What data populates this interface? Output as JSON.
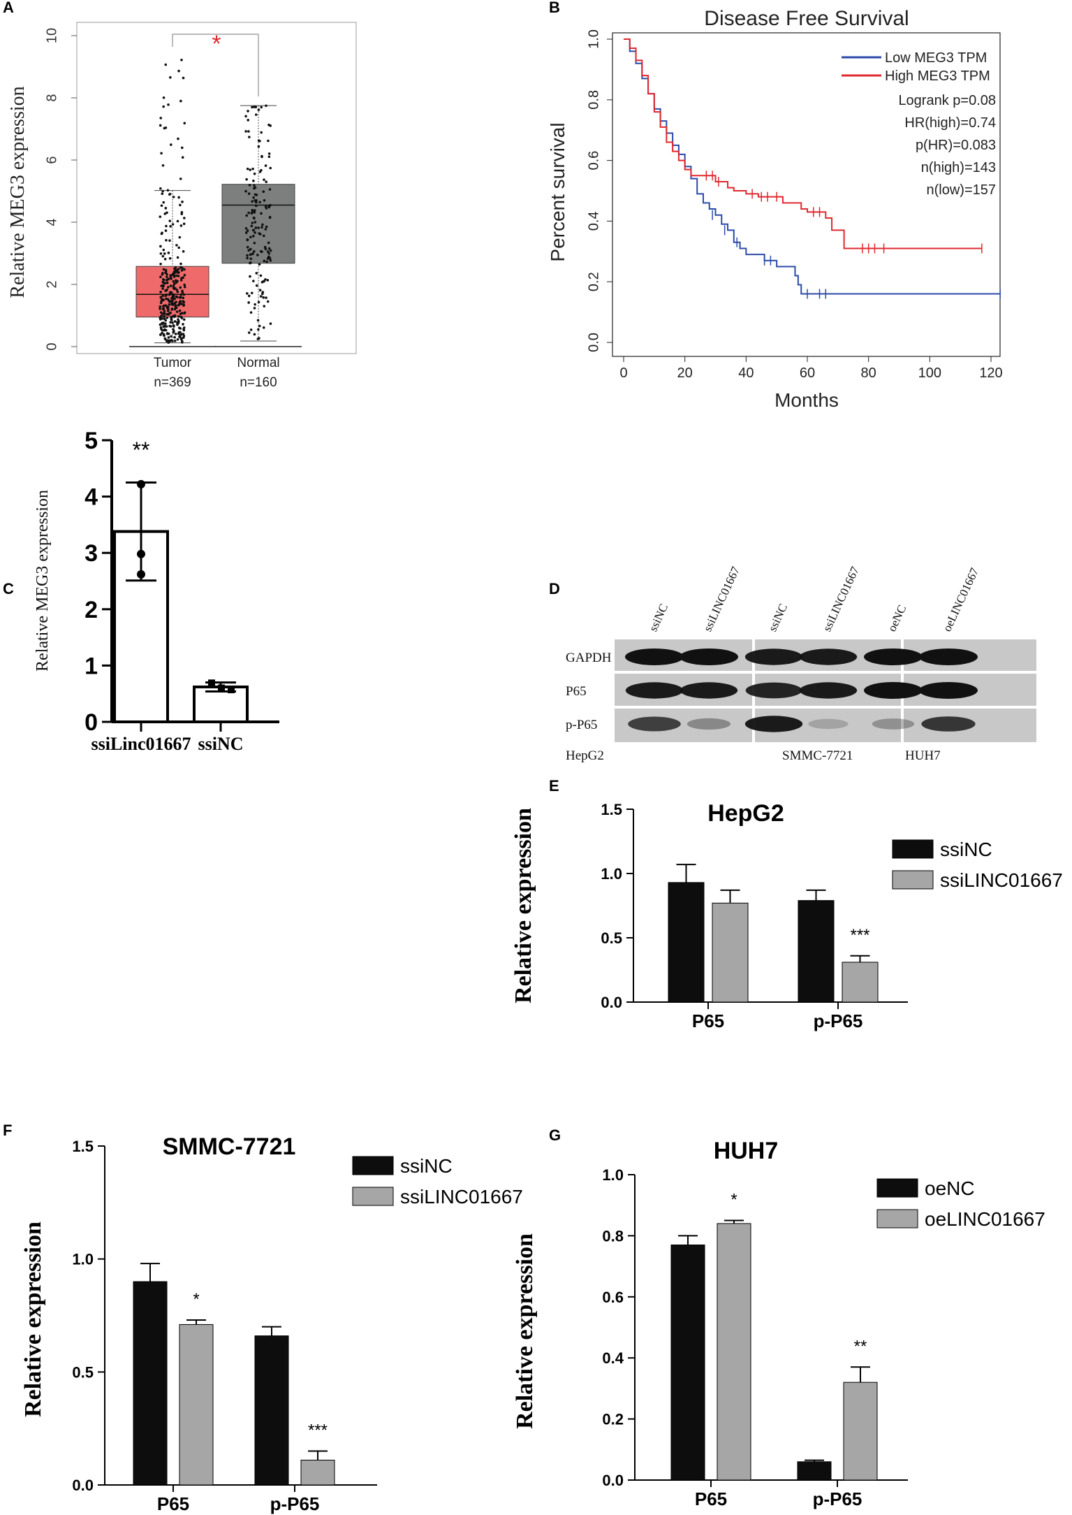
{
  "panel_letters": {
    "a": "A",
    "b": "B",
    "c": "C",
    "d": "D",
    "e": "E",
    "f": "F",
    "g": "G"
  },
  "chart_data": [
    {
      "id": "A",
      "type": "box",
      "title": "",
      "ylabel": "Relative MEG3  expression",
      "ylim": [
        0,
        10
      ],
      "yticks": [
        "0",
        "2",
        "4",
        "6",
        "8",
        "10"
      ],
      "significance": "*",
      "colors": {
        "tumor": "#ef6b6b",
        "normal": "#7c7f7d"
      },
      "groups": [
        {
          "name": "Tumor",
          "n_label": "n=369",
          "q1": 0.95,
          "median": 1.68,
          "q3": 2.58,
          "whisker_low": 0.12,
          "whisker_high": 5.02,
          "max_point": 9.55
        },
        {
          "name": "Normal",
          "n_label": "n=160",
          "q1": 2.68,
          "median": 4.55,
          "q3": 5.22,
          "whisker_low": 0.18,
          "whisker_high": 7.75,
          "max_point": 7.78
        }
      ]
    },
    {
      "id": "B",
      "type": "line",
      "title": "Disease Free Survival",
      "xlabel": "Months",
      "ylabel": "Percent survival",
      "xlim": [
        0,
        125
      ],
      "ylim": [
        0,
        1.0
      ],
      "xticks": [
        "0",
        "20",
        "40",
        "60",
        "80",
        "100",
        "120"
      ],
      "yticks": [
        "0.0",
        "0.2",
        "0.4",
        "0.6",
        "0.8",
        "1.0"
      ],
      "legend": [
        "Low MEG3 TPM",
        "High MEG3 TPM"
      ],
      "stats": [
        "Logrank p=0.08",
        "HR(high)=0.74",
        "p(HR)=0.083",
        "n(high)=143",
        "n(low)=157"
      ],
      "series": [
        {
          "name": "Low MEG3 TPM",
          "color": "#2b4aa8",
          "x": [
            0,
            2,
            4,
            6,
            8,
            10,
            12,
            14,
            16,
            18,
            20,
            22,
            24,
            26,
            28,
            30,
            32,
            34,
            36,
            38,
            40,
            42,
            44,
            46,
            48,
            50,
            52,
            54,
            56,
            57,
            58,
            60,
            70,
            80,
            90,
            100,
            110,
            123
          ],
          "y": [
            1.0,
            0.96,
            0.92,
            0.87,
            0.82,
            0.77,
            0.73,
            0.69,
            0.65,
            0.62,
            0.58,
            0.54,
            0.49,
            0.46,
            0.44,
            0.42,
            0.39,
            0.37,
            0.33,
            0.31,
            0.29,
            0.29,
            0.29,
            0.27,
            0.27,
            0.25,
            0.25,
            0.25,
            0.22,
            0.19,
            0.16,
            0.16,
            0.16,
            0.16,
            0.16,
            0.16,
            0.16,
            0.16
          ]
        },
        {
          "name": "High MEG3 TPM",
          "color": "#e0282e",
          "x": [
            0,
            2,
            4,
            6,
            8,
            10,
            12,
            14,
            16,
            18,
            20,
            22,
            24,
            26,
            28,
            30,
            34,
            36,
            40,
            44,
            48,
            52,
            56,
            58,
            60,
            66,
            68,
            70,
            72,
            74,
            80,
            90,
            100,
            110,
            117
          ],
          "y": [
            1.0,
            0.97,
            0.93,
            0.88,
            0.82,
            0.76,
            0.71,
            0.66,
            0.63,
            0.6,
            0.57,
            0.55,
            0.55,
            0.55,
            0.55,
            0.53,
            0.51,
            0.5,
            0.49,
            0.48,
            0.48,
            0.46,
            0.46,
            0.44,
            0.43,
            0.41,
            0.37,
            0.37,
            0.31,
            0.31,
            0.31,
            0.31,
            0.31,
            0.31,
            0.31
          ]
        }
      ]
    },
    {
      "id": "C",
      "type": "bar",
      "ylabel": "Relative MEG3 expression",
      "ylim": [
        0,
        5
      ],
      "yticks": [
        "0",
        "1",
        "2",
        "3",
        "4",
        "5"
      ],
      "categories": [
        "ssiLinc01667",
        "ssiNC"
      ],
      "values": [
        3.38,
        0.62
      ],
      "errors": [
        0.87,
        0.08
      ],
      "points": [
        [
          4.22,
          2.98,
          2.62
        ],
        [
          0.69,
          0.6,
          0.57
        ]
      ],
      "significance": [
        "**",
        ""
      ]
    },
    {
      "id": "D",
      "type": "western-blot",
      "lanes": [
        "ssiNC",
        "ssiLINC01667",
        "ssiNC",
        "ssiLINC01667",
        "oeNC",
        "oeLINC01667"
      ],
      "rows": [
        "GAPDH",
        "P65",
        "p-P65"
      ],
      "cell_lines": [
        "HepG2",
        "SMMC-7721",
        "HUH7"
      ],
      "intensity": [
        [
          1.0,
          1.0,
          0.95,
          0.95,
          1.0,
          1.0
        ],
        [
          0.95,
          0.95,
          0.9,
          0.95,
          1.0,
          1.0
        ],
        [
          0.75,
          0.35,
          0.95,
          0.2,
          0.3,
          0.8
        ]
      ]
    },
    {
      "id": "E",
      "type": "bar",
      "title": "HepG2",
      "ylabel": "Relative expression",
      "ylim": [
        0,
        1.5
      ],
      "yticks": [
        "0.0",
        "0.5",
        "1.0",
        "1.5"
      ],
      "categories": [
        "P65",
        "p-P65"
      ],
      "series": [
        {
          "name": "ssiNC",
          "color": "#0d0d0d",
          "values": [
            0.93,
            0.79
          ],
          "errors": [
            0.14,
            0.08
          ]
        },
        {
          "name": "ssiLINC01667",
          "color": "#a6a6a6",
          "values": [
            0.77,
            0.31
          ],
          "errors": [
            0.1,
            0.05
          ]
        }
      ],
      "significance": [
        "",
        "***"
      ]
    },
    {
      "id": "F",
      "type": "bar",
      "title": "SMMC-7721",
      "ylabel": "Relative expression",
      "ylim": [
        0,
        1.5
      ],
      "yticks": [
        "0.0",
        "0.5",
        "1.0",
        "1.5"
      ],
      "categories": [
        "P65",
        "p-P65"
      ],
      "series": [
        {
          "name": "ssiNC",
          "color": "#0d0d0d",
          "values": [
            0.9,
            0.66
          ],
          "errors": [
            0.08,
            0.04
          ]
        },
        {
          "name": "ssiLINC01667",
          "color": "#a6a6a6",
          "values": [
            0.71,
            0.11
          ],
          "errors": [
            0.02,
            0.04
          ]
        }
      ],
      "significance": [
        "*",
        "***"
      ]
    },
    {
      "id": "G",
      "type": "bar",
      "title": "HUH7",
      "ylabel": "Relative expression",
      "ylim": [
        0,
        1.0
      ],
      "yticks": [
        "0.0",
        "0.2",
        "0.4",
        "0.6",
        "0.8",
        "1.0"
      ],
      "categories": [
        "P65",
        "p-P65"
      ],
      "series": [
        {
          "name": "oeNC",
          "color": "#0d0d0d",
          "values": [
            0.77,
            0.06
          ],
          "errors": [
            0.03,
            0.005
          ]
        },
        {
          "name": "oeLINC01667",
          "color": "#a6a6a6",
          "values": [
            0.84,
            0.32
          ],
          "errors": [
            0.01,
            0.05
          ]
        }
      ],
      "significance": [
        "*",
        "**"
      ]
    }
  ]
}
